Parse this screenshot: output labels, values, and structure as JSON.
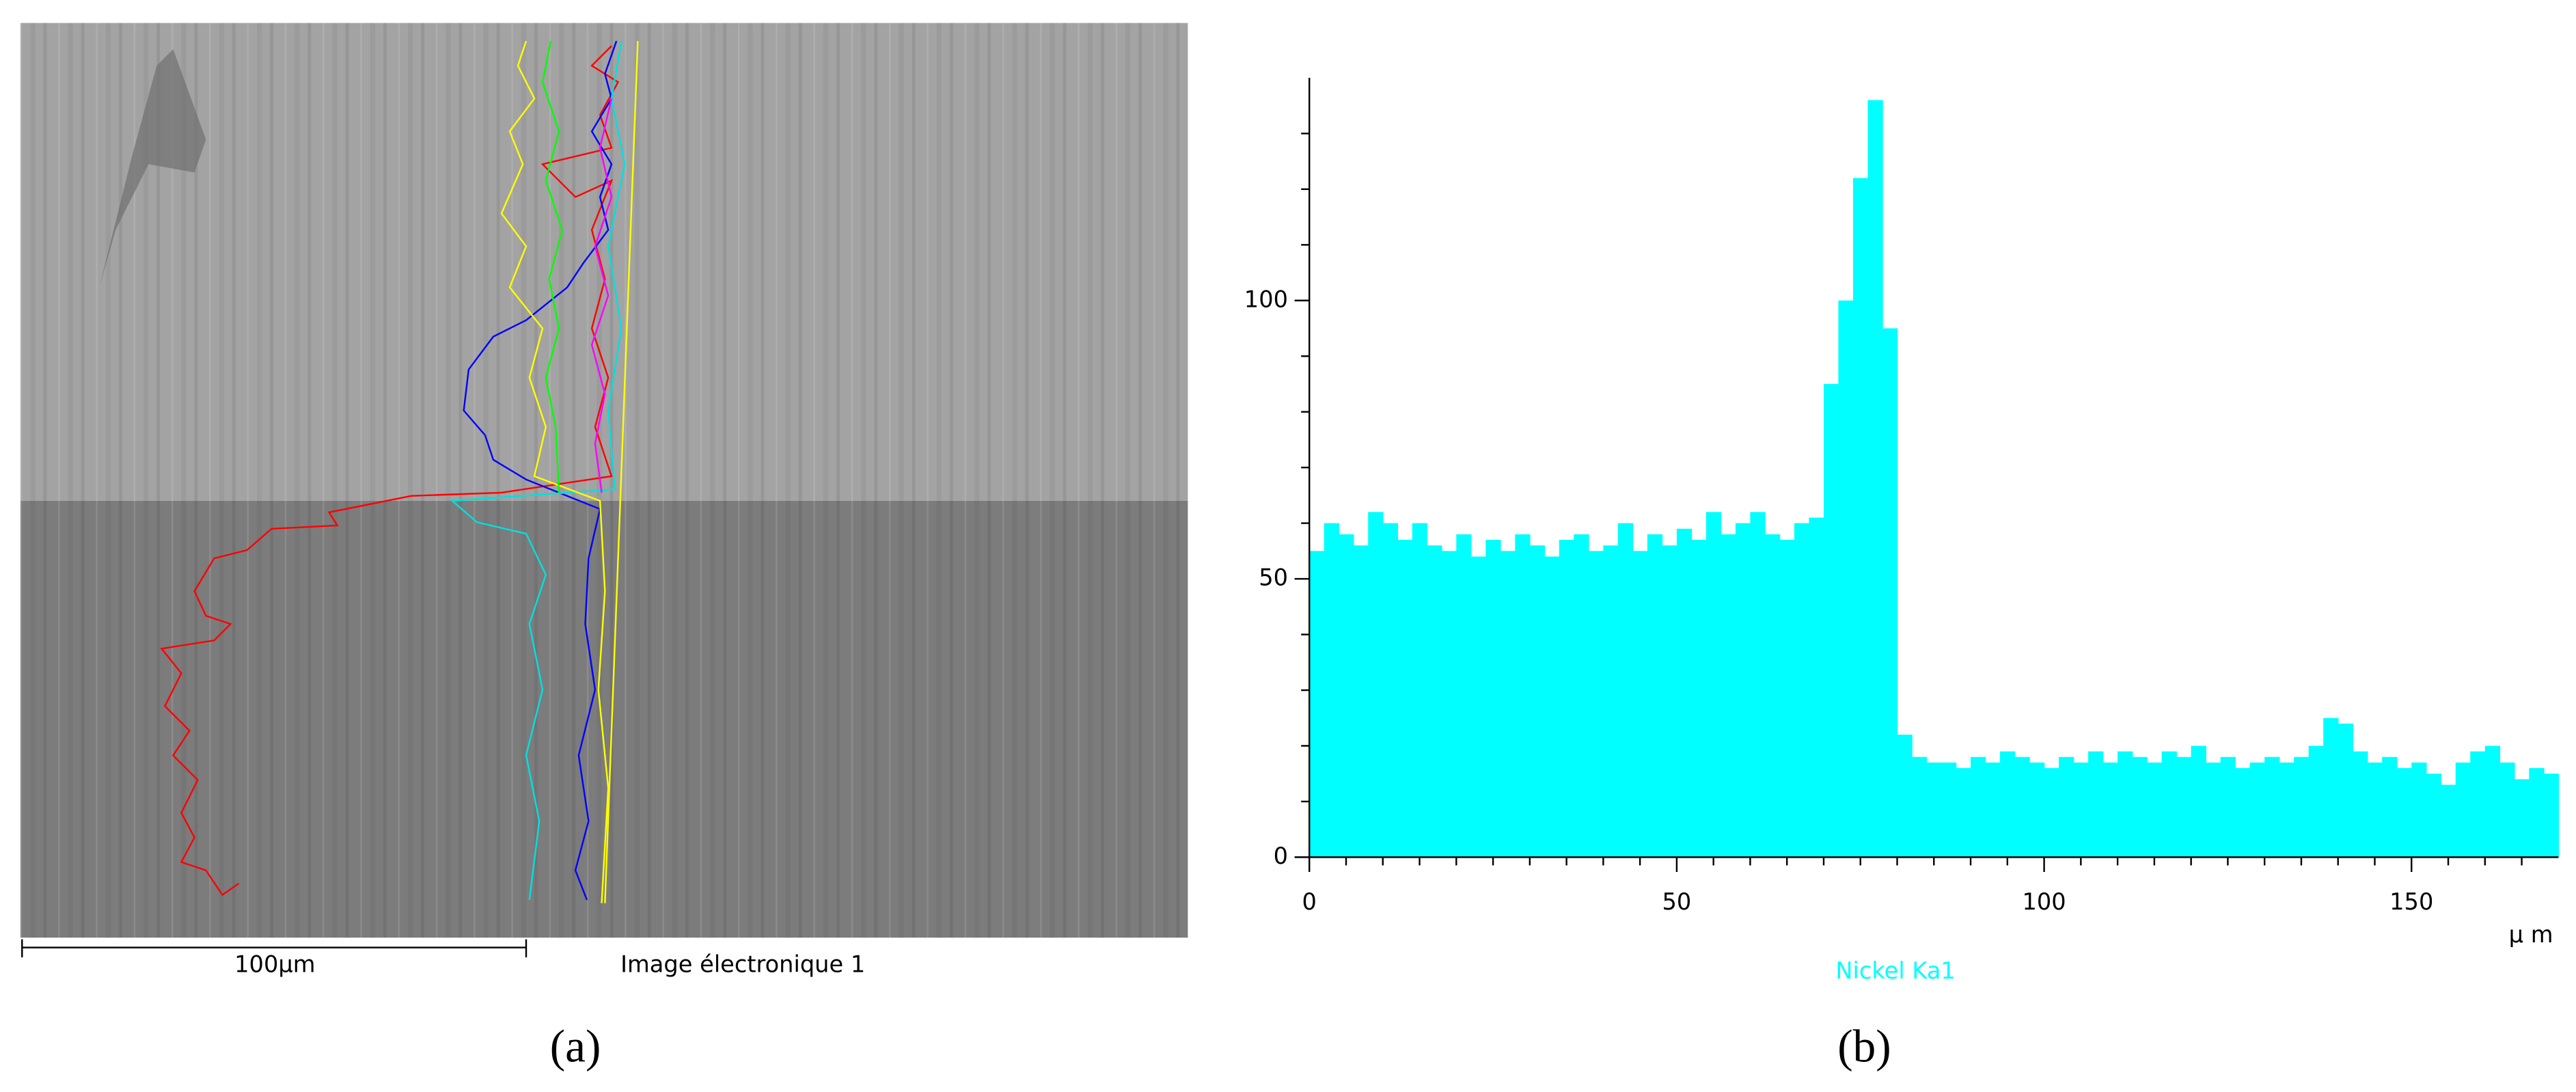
{
  "panel_a": {
    "label": "(a)",
    "scale_bar": "100µm",
    "caption": "Image électronique 1"
  },
  "chart_data": {
    "type": "histogram",
    "panel_label": "(b)",
    "series_name": "Nickel Ka1",
    "color": "#00ffff",
    "xlabel": "µ m",
    "bins": [
      0,
      2,
      4,
      6,
      8,
      10,
      12,
      14,
      16,
      18,
      20,
      22,
      24,
      26,
      28,
      30,
      32,
      34,
      36,
      38,
      40,
      42,
      44,
      46,
      48,
      50,
      52,
      54,
      56,
      58,
      60,
      62,
      64,
      66,
      68,
      70,
      72,
      74,
      76,
      78,
      80,
      82,
      84,
      86,
      88,
      90,
      92,
      94,
      96,
      98,
      100,
      102,
      104,
      106,
      108,
      110,
      112,
      114,
      116,
      118,
      120,
      122,
      124,
      126,
      128,
      130,
      132,
      134,
      136,
      138,
      140,
      142,
      144,
      146,
      148,
      150,
      152,
      154,
      156,
      158,
      160,
      162,
      164,
      166,
      168,
      170
    ],
    "values": [
      55,
      60,
      58,
      56,
      62,
      60,
      57,
      60,
      56,
      55,
      58,
      54,
      57,
      55,
      58,
      56,
      54,
      57,
      58,
      55,
      56,
      60,
      55,
      58,
      56,
      59,
      57,
      62,
      58,
      60,
      62,
      58,
      57,
      60,
      61,
      85,
      100,
      122,
      136,
      95,
      22,
      18,
      17,
      17,
      16,
      18,
      17,
      19,
      18,
      17,
      16,
      18,
      17,
      19,
      17,
      19,
      18,
      17,
      19,
      18,
      20,
      17,
      18,
      16,
      17,
      18,
      17,
      18,
      20,
      25,
      24,
      19,
      17,
      18,
      16,
      17,
      15,
      13,
      17,
      19,
      20,
      17,
      14,
      16,
      15
    ],
    "xlim": [
      0,
      170
    ],
    "ylim": [
      0,
      140
    ],
    "xticks": [
      0,
      50,
      100,
      150
    ],
    "yticks": [
      0,
      50,
      100
    ],
    "xminorticks": [
      5,
      10,
      15,
      20,
      25,
      30,
      35,
      40,
      45,
      55,
      60,
      65,
      70,
      75,
      80,
      85,
      90,
      95,
      105,
      110,
      115,
      120,
      125,
      130,
      135,
      140,
      145,
      155,
      160,
      165
    ],
    "yminorticks": [
      10,
      20,
      30,
      40,
      60,
      70,
      80,
      90,
      110,
      120,
      130
    ]
  }
}
